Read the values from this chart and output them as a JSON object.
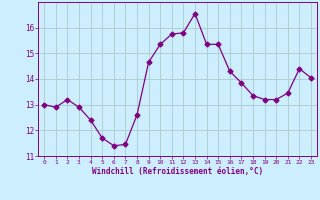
{
  "x": [
    0,
    1,
    2,
    3,
    4,
    5,
    6,
    7,
    8,
    9,
    10,
    11,
    12,
    13,
    14,
    15,
    16,
    17,
    18,
    19,
    20,
    21,
    22,
    23
  ],
  "y": [
    13.0,
    12.9,
    13.2,
    12.9,
    12.4,
    11.7,
    11.4,
    11.45,
    12.6,
    14.65,
    15.35,
    15.75,
    15.8,
    16.55,
    15.35,
    15.35,
    14.3,
    13.85,
    13.35,
    13.2,
    13.2,
    13.45,
    14.4,
    14.05
  ],
  "line_color": "#800080",
  "marker": "D",
  "marker_size": 2.5,
  "bg_color": "#cceeff",
  "grid_color": "#aacccc",
  "xlabel": "Windchill (Refroidissement éolien,°C)",
  "xlabel_color": "#800080",
  "tick_color": "#800080",
  "ylim": [
    11.0,
    17.0
  ],
  "xlim": [
    -0.5,
    23.5
  ],
  "yticks": [
    11,
    12,
    13,
    14,
    15,
    16
  ],
  "xticks": [
    0,
    1,
    2,
    3,
    4,
    5,
    6,
    7,
    8,
    9,
    10,
    11,
    12,
    13,
    14,
    15,
    16,
    17,
    18,
    19,
    20,
    21,
    22,
    23
  ],
  "xtick_labels": [
    "0",
    "1",
    "2",
    "3",
    "4",
    "5",
    "6",
    "7",
    "8",
    "9",
    "10",
    "11",
    "12",
    "13",
    "14",
    "15",
    "16",
    "17",
    "18",
    "19",
    "20",
    "21",
    "22",
    "23"
  ]
}
